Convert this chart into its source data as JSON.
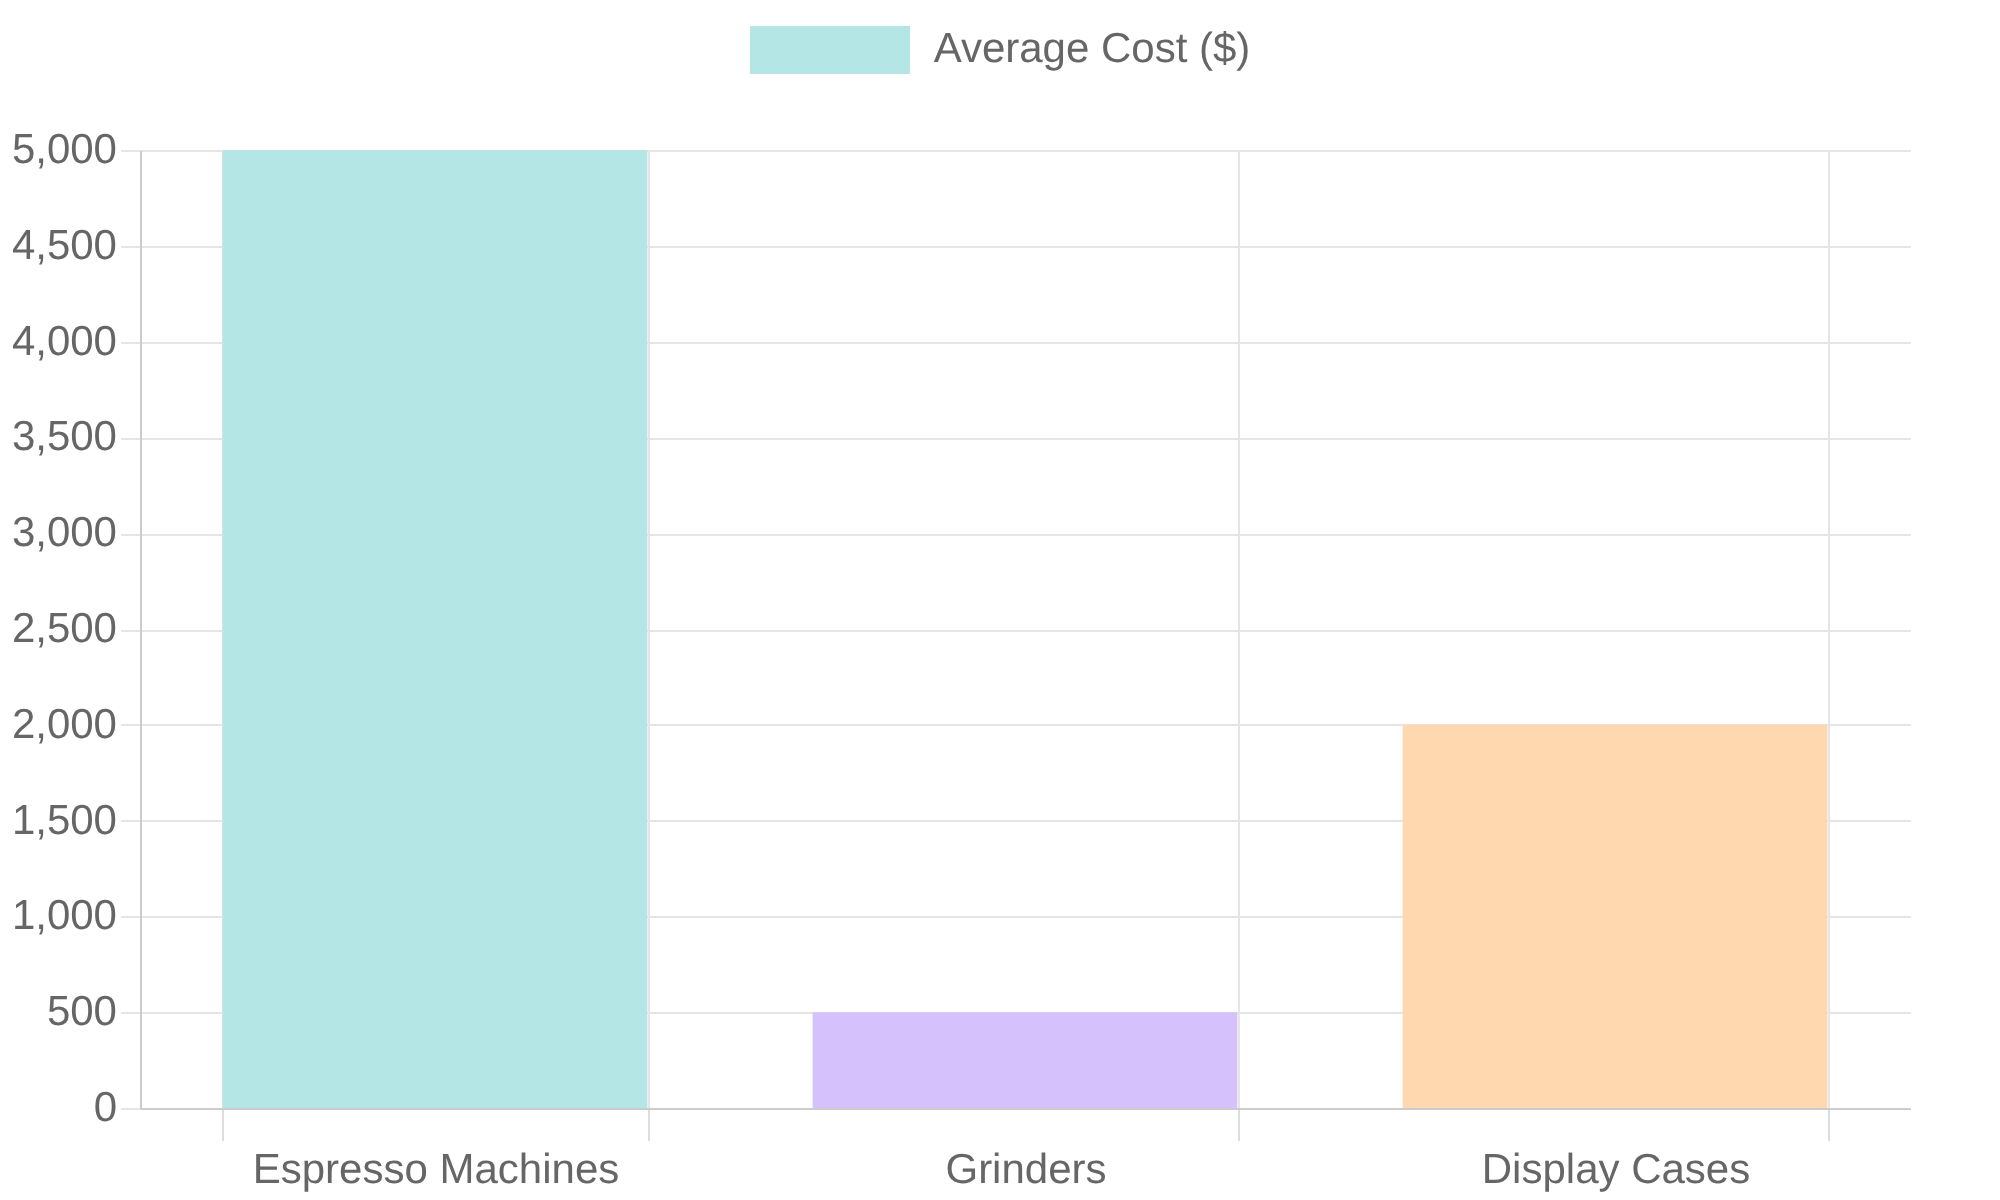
{
  "chart_data": {
    "type": "bar",
    "categories": [
      "Espresso Machines",
      "Grinders",
      "Display Cases"
    ],
    "series": [
      {
        "name": "Average Cost ($)",
        "values": [
          5000,
          500,
          2000
        ]
      }
    ],
    "colors": [
      "#b3e6e4",
      "#d5c2fc",
      "#ffd8b0"
    ],
    "ylim": [
      0,
      5000
    ],
    "yticks": [
      0,
      500,
      {
        "value": 1000,
        "label": "1,000"
      },
      {
        "value": 1500,
        "label": "1,500"
      },
      {
        "value": 2000,
        "label": "2,000"
      },
      {
        "value": 2500,
        "label": "2,500"
      },
      {
        "value": 3000,
        "label": "3,000"
      },
      {
        "value": 3500,
        "label": "3,500"
      },
      {
        "value": 4000,
        "label": "4,000"
      },
      {
        "value": 4500,
        "label": "4,500"
      },
      {
        "value": 5000,
        "label": "5,000"
      }
    ],
    "grid": true,
    "legend": "top"
  }
}
